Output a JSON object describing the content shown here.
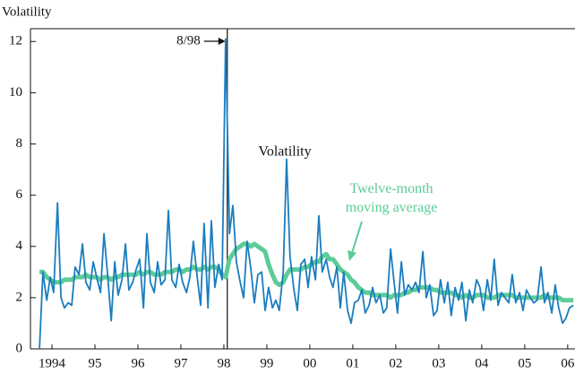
{
  "chart_data": {
    "type": "line",
    "y_axis_label": "Volatility",
    "x": [
      1994.21,
      1994.29,
      1994.38,
      1994.46,
      1994.54,
      1994.63,
      1994.71,
      1994.79,
      1994.88,
      1994.96,
      1995.04,
      1995.13,
      1995.21,
      1995.29,
      1995.38,
      1995.46,
      1995.54,
      1995.63,
      1995.71,
      1995.79,
      1995.88,
      1995.96,
      1996.04,
      1996.13,
      1996.21,
      1996.29,
      1996.38,
      1996.46,
      1996.54,
      1996.63,
      1996.71,
      1996.79,
      1996.88,
      1996.96,
      1997.04,
      1997.13,
      1997.21,
      1997.29,
      1997.38,
      1997.46,
      1997.54,
      1997.63,
      1997.71,
      1997.79,
      1997.88,
      1997.96,
      1998.04,
      1998.13,
      1998.21,
      1998.29,
      1998.38,
      1998.46,
      1998.54,
      1998.63,
      1998.71,
      1998.79,
      1998.88,
      1998.96,
      1999.04,
      1999.13,
      1999.21,
      1999.29,
      1999.38,
      1999.46,
      1999.54,
      1999.63,
      1999.71,
      1999.79,
      1999.88,
      1999.96,
      2000.04,
      2000.13,
      2000.21,
      2000.29,
      2000.38,
      2000.46,
      2000.54,
      2000.63,
      2000.71,
      2000.79,
      2000.88,
      2000.96,
      2001.04,
      2001.13,
      2001.21,
      2001.29,
      2001.38,
      2001.46,
      2001.54,
      2001.63,
      2001.71,
      2001.79,
      2001.88,
      2001.96,
      2002.04,
      2002.13,
      2002.21,
      2002.29,
      2002.38,
      2002.46,
      2002.54,
      2002.63,
      2002.71,
      2002.79,
      2002.88,
      2002.96,
      2003.04,
      2003.13,
      2003.21,
      2003.29,
      2003.38,
      2003.46,
      2003.54,
      2003.63,
      2003.71,
      2003.79,
      2003.88,
      2003.96,
      2004.04,
      2004.13,
      2004.21,
      2004.29,
      2004.38,
      2004.46,
      2004.54,
      2004.63,
      2004.71,
      2004.79,
      2004.88,
      2004.96,
      2005.04,
      2005.13,
      2005.21,
      2005.29,
      2005.38,
      2005.46,
      2005.54,
      2005.63,
      2005.71,
      2005.79,
      2005.88,
      2005.96,
      2006.04,
      2006.13,
      2006.21,
      2006.29,
      2006.38,
      2006.46,
      2006.54,
      2006.63
    ],
    "series": [
      {
        "name": "Twelve-month moving average",
        "color": "#5ccc98",
        "values": [
          3.0,
          3.0,
          2.8,
          2.7,
          2.6,
          2.6,
          2.6,
          2.7,
          2.7,
          2.7,
          2.8,
          2.8,
          2.8,
          2.9,
          2.8,
          2.8,
          2.8,
          2.7,
          2.8,
          2.8,
          2.7,
          2.8,
          2.8,
          2.9,
          2.9,
          2.9,
          2.9,
          2.9,
          3.0,
          2.9,
          3.0,
          3.0,
          2.9,
          2.9,
          2.9,
          3.0,
          3.0,
          3.0,
          3.1,
          3.1,
          3.0,
          3.1,
          3.1,
          3.2,
          3.1,
          3.1,
          3.2,
          3.1,
          3.2,
          3.2,
          3.1,
          2.9,
          2.8,
          3.5,
          3.7,
          3.9,
          4.0,
          4.1,
          4.1,
          4.0,
          4.1,
          4.0,
          3.9,
          3.8,
          3.3,
          2.9,
          2.6,
          2.5,
          2.6,
          2.9,
          3.1,
          3.1,
          3.1,
          3.1,
          3.2,
          3.2,
          3.3,
          3.4,
          3.4,
          3.6,
          3.7,
          3.5,
          3.5,
          3.3,
          3.1,
          3.0,
          2.9,
          2.7,
          2.6,
          2.4,
          2.3,
          2.2,
          2.2,
          2.1,
          2.1,
          2.1,
          2.1,
          2.1,
          2.0,
          2.1,
          2.1,
          2.1,
          2.2,
          2.2,
          2.3,
          2.3,
          2.4,
          2.4,
          2.4,
          2.4,
          2.3,
          2.3,
          2.2,
          2.2,
          2.2,
          2.2,
          2.1,
          2.1,
          2.0,
          2.1,
          2.0,
          2.0,
          2.1,
          2.1,
          2.1,
          2.0,
          2.0,
          2.0,
          2.1,
          2.1,
          2.1,
          2.1,
          2.1,
          2.0,
          2.0,
          2.0,
          2.0,
          2.0,
          2.0,
          2.0,
          2.0,
          2.1,
          2.0,
          2.0,
          2.0,
          2.0,
          1.9,
          1.9,
          1.9,
          1.9
        ]
      },
      {
        "name": "Volatility",
        "color": "#1a7dbf",
        "values": [
          0,
          3.0,
          1.9,
          2.8,
          2.2,
          5.7,
          2.0,
          1.6,
          1.8,
          1.7,
          3.2,
          2.9,
          4.1,
          2.6,
          2.3,
          3.4,
          2.8,
          2.2,
          4.5,
          3.0,
          1.1,
          3.4,
          2.1,
          2.7,
          4.1,
          2.3,
          2.6,
          3.1,
          3.5,
          1.6,
          4.5,
          2.6,
          2.2,
          3.4,
          2.5,
          2.7,
          5.4,
          2.7,
          2.4,
          3.3,
          2.6,
          2.2,
          2.8,
          4.2,
          2.8,
          1.7,
          4.9,
          1.6,
          5.0,
          2.4,
          3.3,
          2.7,
          12.1,
          4.5,
          5.6,
          3.4,
          2.6,
          2.0,
          4.2,
          3.1,
          1.8,
          2.9,
          3.0,
          1.5,
          2.4,
          1.6,
          1.9,
          1.5,
          3.0,
          7.4,
          3.6,
          2.3,
          1.5,
          3.3,
          3.5,
          2.4,
          3.6,
          2.7,
          5.2,
          3.0,
          3.5,
          2.8,
          2.4,
          3.2,
          1.6,
          3.0,
          1.5,
          1.0,
          1.8,
          1.9,
          2.3,
          1.4,
          1.7,
          2.4,
          1.8,
          2.1,
          1.4,
          1.6,
          3.9,
          2.6,
          1.4,
          3.4,
          2.1,
          2.5,
          2.3,
          2.6,
          2.2,
          3.8,
          2.0,
          2.5,
          1.3,
          1.5,
          2.7,
          1.8,
          2.6,
          1.3,
          2.4,
          1.9,
          2.6,
          1.1,
          2.3,
          1.8,
          2.7,
          2.4,
          1.5,
          2.7,
          1.9,
          3.5,
          1.7,
          2.2,
          2.0,
          1.8,
          2.9,
          1.8,
          2.2,
          1.5,
          2.3,
          2.0,
          1.8,
          1.9,
          3.2,
          1.8,
          2.2,
          1.4,
          2.5,
          1.6,
          1.0,
          1.2,
          1.6,
          1.7
        ]
      }
    ],
    "annotations": [
      {
        "text": "8/98",
        "x": 1998.58
      }
    ],
    "xlim": [
      1994,
      2006.67
    ],
    "ylim": [
      0,
      12.5
    ],
    "yticks": [
      0,
      2,
      4,
      6,
      8,
      10,
      12
    ],
    "xticks": [
      {
        "value": 1994.5,
        "label": "1994"
      },
      {
        "value": 1995.5,
        "label": "95"
      },
      {
        "value": 1996.5,
        "label": "96"
      },
      {
        "value": 1997.5,
        "label": "97"
      },
      {
        "value": 1998.5,
        "label": "98"
      },
      {
        "value": 1999.5,
        "label": "99"
      },
      {
        "value": 2000.5,
        "label": "00"
      },
      {
        "value": 2001.5,
        "label": "01"
      },
      {
        "value": 2002.5,
        "label": "02"
      },
      {
        "value": 2003.5,
        "label": "03"
      },
      {
        "value": 2004.5,
        "label": "04"
      },
      {
        "value": 2005.5,
        "label": "05"
      },
      {
        "value": 2006.5,
        "label": "06"
      }
    ]
  }
}
